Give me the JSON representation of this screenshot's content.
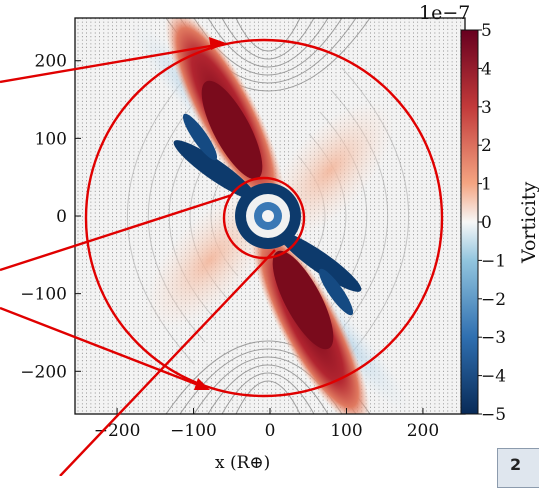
{
  "chart_data": {
    "type": "heatmap",
    "title": "",
    "xlabel": "x  (R⊕)",
    "ylabel": "",
    "xlim": [
      -255,
      255
    ],
    "ylim": [
      -255,
      255
    ],
    "x_ticks": [
      "−200",
      "−100",
      "0",
      "100",
      "200"
    ],
    "y_ticks": [
      "200",
      "100",
      "0",
      "−100",
      "−200"
    ],
    "x_tick_values": [
      -200,
      -100,
      0,
      100,
      200
    ],
    "y_tick_values": [
      200,
      100,
      0,
      -100,
      -200
    ],
    "colorbar": {
      "label": "Vorticity",
      "scale": "1e−7",
      "ticks": [
        "5",
        "4",
        "3",
        "2",
        "1",
        "0",
        "−1",
        "−2",
        "−3",
        "−4",
        "−5"
      ],
      "tick_values": [
        5,
        4,
        3,
        2,
        1,
        0,
        -1,
        -2,
        -3,
        -4,
        -5
      ],
      "colors": {
        "high": "#7a0c1e",
        "mid": "#f7f7f7",
        "low": "#0e3a6b"
      }
    },
    "annotations": {
      "large_circle_radius": 178,
      "small_circle_radius": 40,
      "circle_color": "#e00000",
      "arrow_color": "#e00000"
    },
    "features": {
      "positive_lobes_center": [
        [
          -40,
          150
        ],
        [
          40,
          -150
        ]
      ],
      "negative_arms_center": [
        [
          -80,
          50
        ],
        [
          80,
          -50
        ]
      ]
    }
  },
  "ui": {
    "corner_tab": "2"
  }
}
